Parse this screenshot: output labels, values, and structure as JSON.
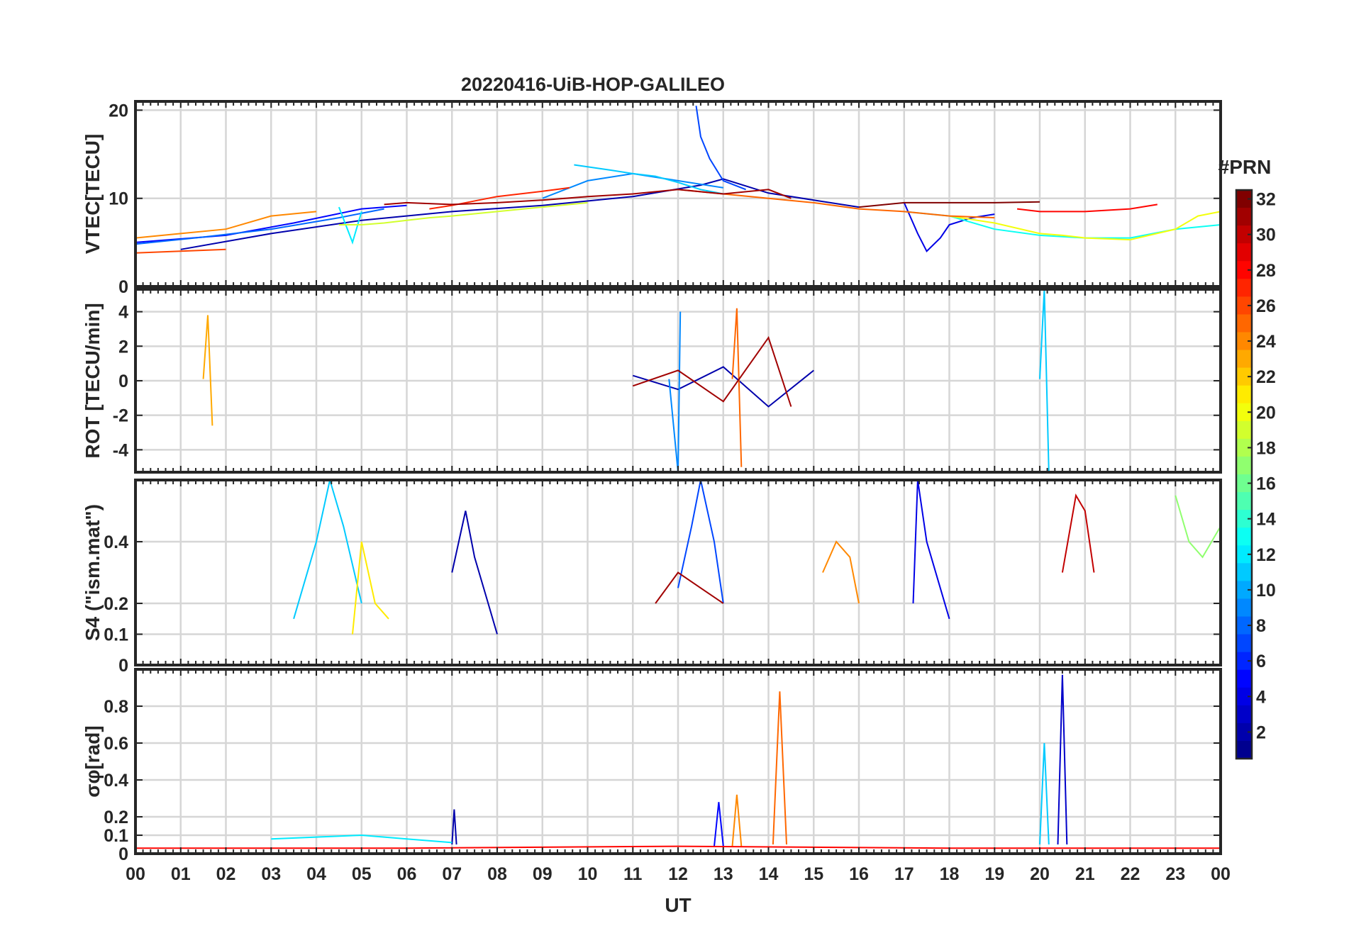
{
  "title": "20220416-UiB-HOP-GALILEO",
  "xlabel": "UT",
  "x_tick_labels": [
    "00",
    "01",
    "02",
    "03",
    "04",
    "05",
    "06",
    "07",
    "08",
    "09",
    "10",
    "11",
    "12",
    "13",
    "14",
    "15",
    "16",
    "17",
    "18",
    "19",
    "20",
    "21",
    "22",
    "23",
    "00"
  ],
  "colorbar": {
    "label": "#PRN",
    "range": [
      1,
      32
    ],
    "tick_labels": [
      "2",
      "4",
      "6",
      "8",
      "10",
      "12",
      "14",
      "16",
      "18",
      "20",
      "22",
      "24",
      "26",
      "28",
      "30",
      "32"
    ],
    "colormap": "jet",
    "colormap_stops": [
      "#00008f",
      "#0000ff",
      "#0080ff",
      "#00ffff",
      "#80ff80",
      "#ffff00",
      "#ff8000",
      "#ff0000",
      "#800000"
    ]
  },
  "chart_data": [
    {
      "type": "line",
      "panel": "vtec",
      "ylabel": "VTEC[TECU]",
      "ylim": [
        0,
        21
      ],
      "y_tick_labels": [
        "0",
        "10",
        "20"
      ],
      "grid": true,
      "series": [
        {
          "prn": 2,
          "x": [
            1.0,
            3.0,
            5.0,
            7.0,
            9.0,
            11.0,
            12.5,
            13.0,
            14.0,
            15.0,
            16.0
          ],
          "y": [
            4.2,
            6.0,
            7.5,
            8.5,
            9.2,
            10.2,
            11.5,
            12.2,
            10.6,
            9.8,
            9.0
          ]
        },
        {
          "prn": 5,
          "x": [
            0.0,
            2.0,
            3.5,
            5.0,
            6.0
          ],
          "y": [
            5.0,
            5.8,
            7.2,
            8.8,
            9.2
          ]
        },
        {
          "prn": 4,
          "x": [
            17.0,
            17.3,
            17.5,
            17.8,
            18.0,
            18.5,
            19.0
          ],
          "y": [
            9.5,
            6.0,
            4.0,
            5.5,
            7.0,
            7.8,
            8.2
          ]
        },
        {
          "prn": 7,
          "x": [
            12.4,
            12.5,
            12.7,
            13.0,
            13.5
          ],
          "y": [
            20.5,
            17.0,
            14.5,
            12.0,
            11.0
          ]
        },
        {
          "prn": 8,
          "x": [
            0.0,
            1.5,
            3.0,
            4.5,
            5.5
          ],
          "y": [
            4.8,
            5.6,
            6.5,
            7.8,
            8.8
          ]
        },
        {
          "prn": 9,
          "x": [
            9.0,
            10.0,
            11.0,
            12.0,
            13.0
          ],
          "y": [
            10.0,
            12.0,
            12.8,
            12.0,
            11.2
          ]
        },
        {
          "prn": 11,
          "x": [
            9.7,
            10.5,
            11.0,
            11.5,
            12.0,
            12.5,
            13.0
          ],
          "y": [
            13.8,
            13.2,
            12.8,
            12.5,
            11.8,
            11.0,
            10.5
          ]
        },
        {
          "prn": 12,
          "x": [
            4.5,
            4.8,
            5.0
          ],
          "y": [
            9.0,
            5.0,
            8.5
          ]
        },
        {
          "prn": 13,
          "x": [
            17.0,
            18.0,
            19.0,
            20.0,
            21.0,
            22.0,
            23.0,
            24.0
          ],
          "y": [
            8.5,
            8.0,
            6.5,
            5.8,
            5.5,
            5.5,
            6.5,
            7.0
          ]
        },
        {
          "prn": 19,
          "x": [
            4.5,
            5.0,
            5.5,
            6.0,
            6.5,
            7.0,
            8.0,
            9.0,
            10.0
          ],
          "y": [
            7.0,
            7.0,
            7.2,
            7.5,
            7.8,
            8.0,
            8.5,
            9.0,
            9.5
          ]
        },
        {
          "prn": 20,
          "x": [
            18.0,
            19.0,
            20.0,
            20.5,
            21.0,
            22.0,
            23.0,
            23.5,
            24.0
          ],
          "y": [
            8.0,
            7.2,
            6.0,
            5.8,
            5.5,
            5.3,
            6.5,
            8.0,
            8.5
          ]
        },
        {
          "prn": 24,
          "x": [
            0.0,
            1.0,
            2.0,
            3.0,
            4.0
          ],
          "y": [
            5.5,
            6.0,
            6.5,
            8.0,
            8.5
          ]
        },
        {
          "prn": 25,
          "x": [
            12.0,
            13.0,
            14.0,
            15.0,
            16.0,
            17.0,
            18.0,
            19.0
          ],
          "y": [
            11.0,
            10.5,
            10.0,
            9.5,
            8.8,
            8.5,
            8.0,
            7.8
          ]
        },
        {
          "prn": 26,
          "x": [
            0.0,
            1.0,
            2.0
          ],
          "y": [
            3.8,
            4.0,
            4.2
          ]
        },
        {
          "prn": 27,
          "x": [
            6.5,
            7.0,
            8.0,
            9.0,
            9.6
          ],
          "y": [
            8.8,
            9.2,
            10.2,
            10.8,
            11.2
          ]
        },
        {
          "prn": 28,
          "x": [
            19.5,
            20.0,
            21.0,
            22.0,
            22.6
          ],
          "y": [
            8.8,
            8.5,
            8.5,
            8.8,
            9.3
          ]
        },
        {
          "prn": 31,
          "x": [
            5.5,
            6.0,
            7.0,
            8.0,
            9.0,
            10.0,
            11.0,
            12.0,
            13.0,
            14.0,
            14.5
          ],
          "y": [
            9.3,
            9.5,
            9.3,
            9.5,
            9.8,
            10.2,
            10.5,
            11.0,
            10.5,
            11.0,
            10.0
          ]
        },
        {
          "prn": 32,
          "x": [
            16.0,
            17.0,
            18.0,
            19.0,
            20.0
          ],
          "y": [
            9.0,
            9.5,
            9.5,
            9.5,
            9.6
          ]
        }
      ]
    },
    {
      "type": "line",
      "panel": "rot",
      "ylabel": "ROT [TECU/min]",
      "ylim": [
        -5.3,
        5.3
      ],
      "y_tick_labels": [
        "-4",
        "-2",
        "0",
        "2",
        "4"
      ],
      "grid": true,
      "series": [
        {
          "prn": 2,
          "x": [
            11.0,
            12.0,
            13.0,
            14.0,
            15.0
          ],
          "y": [
            0.3,
            -0.5,
            0.8,
            -1.5,
            0.6
          ]
        },
        {
          "prn": 9,
          "x": [
            11.8,
            12.0,
            12.05
          ],
          "y": [
            0.1,
            -5.3,
            4.0
          ]
        },
        {
          "prn": 11,
          "x": [
            20.0,
            20.1,
            20.2
          ],
          "y": [
            0.1,
            5.3,
            -5.3
          ]
        },
        {
          "prn": 23,
          "x": [
            1.5,
            1.6,
            1.7
          ],
          "y": [
            0.1,
            3.8,
            -2.6
          ]
        },
        {
          "prn": 25,
          "x": [
            13.2,
            13.3,
            13.4
          ],
          "y": [
            0.1,
            4.2,
            -5.0
          ]
        },
        {
          "prn": 31,
          "x": [
            11.0,
            12.0,
            13.0,
            14.0,
            14.5
          ],
          "y": [
            -0.3,
            0.6,
            -1.2,
            2.5,
            -1.5
          ]
        }
      ]
    },
    {
      "type": "line",
      "panel": "s4",
      "ylabel": "S4 (\"ism.mat\")",
      "ylim": [
        0,
        0.6
      ],
      "y_tick_labels": [
        "0",
        "0.1",
        "0.2",
        "0.4"
      ],
      "grid": true,
      "series": [
        {
          "prn": 2,
          "x": [
            7.0,
            7.3,
            7.5,
            7.8,
            8.0
          ],
          "y": [
            0.3,
            0.5,
            0.35,
            0.2,
            0.1
          ]
        },
        {
          "prn": 4,
          "x": [
            17.2,
            17.3,
            17.5,
            18.0
          ],
          "y": [
            0.2,
            0.6,
            0.4,
            0.15
          ]
        },
        {
          "prn": 7,
          "x": [
            12.0,
            12.3,
            12.5,
            12.8,
            13.0
          ],
          "y": [
            0.25,
            0.45,
            0.6,
            0.4,
            0.2
          ]
        },
        {
          "prn": 11,
          "x": [
            3.5,
            4.0,
            4.3,
            4.6,
            5.0
          ],
          "y": [
            0.15,
            0.4,
            0.6,
            0.45,
            0.2
          ]
        },
        {
          "prn": 17,
          "x": [
            23.0,
            23.3,
            23.6,
            24.0
          ],
          "y": [
            0.55,
            0.4,
            0.35,
            0.45
          ]
        },
        {
          "prn": 21,
          "x": [
            4.8,
            5.0,
            5.3,
            5.6
          ],
          "y": [
            0.1,
            0.4,
            0.2,
            0.15
          ]
        },
        {
          "prn": 24,
          "x": [
            15.2,
            15.5,
            15.8,
            16.0
          ],
          "y": [
            0.3,
            0.4,
            0.35,
            0.2
          ]
        },
        {
          "prn": 30,
          "x": [
            20.5,
            20.8,
            21.0,
            21.2
          ],
          "y": [
            0.3,
            0.55,
            0.5,
            0.3
          ]
        },
        {
          "prn": 31,
          "x": [
            11.5,
            12.0,
            12.5,
            13.0
          ],
          "y": [
            0.2,
            0.3,
            0.25,
            0.2
          ]
        }
      ]
    },
    {
      "type": "line",
      "panel": "sigma_phi",
      "ylabel": "σφ[rad]",
      "ylim": [
        0,
        1.0
      ],
      "y_tick_labels": [
        "0",
        "0.1",
        "0.2",
        "0.4",
        "0.6",
        "0.8"
      ],
      "grid": true,
      "series": [
        {
          "prn": 3,
          "x": [
            20.4,
            20.5,
            20.6
          ],
          "y": [
            0.05,
            0.97,
            0.05
          ]
        },
        {
          "prn": 11,
          "x": [
            20.0,
            20.1,
            20.2
          ],
          "y": [
            0.05,
            0.6,
            0.05
          ]
        },
        {
          "prn": 25,
          "x": [
            14.1,
            14.25,
            14.4
          ],
          "y": [
            0.05,
            0.88,
            0.05
          ]
        },
        {
          "prn": 24,
          "x": [
            13.2,
            13.3,
            13.4
          ],
          "y": [
            0.04,
            0.32,
            0.04
          ]
        },
        {
          "prn": 5,
          "x": [
            12.8,
            12.9,
            13.0
          ],
          "y": [
            0.04,
            0.28,
            0.04
          ]
        },
        {
          "prn": 2,
          "x": [
            7.0,
            7.05,
            7.1
          ],
          "y": [
            0.05,
            0.24,
            0.05
          ]
        },
        {
          "prn": 12,
          "x": [
            3.0,
            4.0,
            5.0,
            6.0,
            7.0
          ],
          "y": [
            0.08,
            0.09,
            0.1,
            0.08,
            0.06
          ]
        },
        {
          "prn": 28,
          "x": [
            0.0,
            6.0,
            12.0,
            18.0,
            24.0
          ],
          "y": [
            0.03,
            0.03,
            0.04,
            0.03,
            0.03
          ]
        }
      ]
    }
  ]
}
